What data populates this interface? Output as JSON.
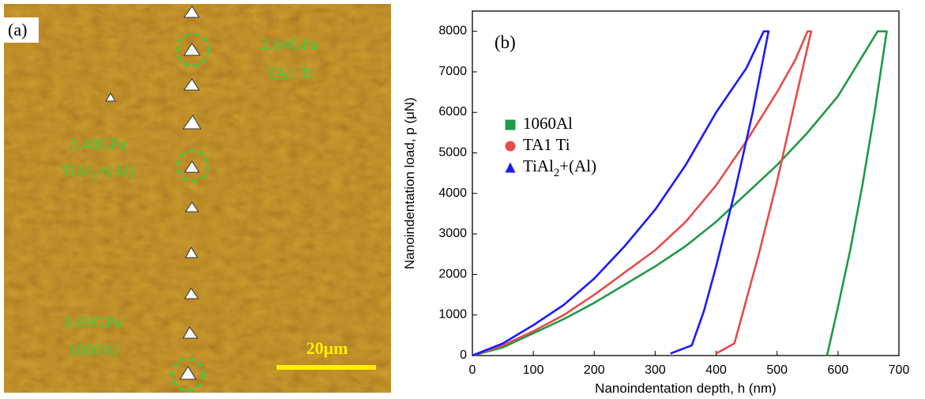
{
  "image_panel": {
    "label": "(a)",
    "annotations": [
      {
        "value": "2.64GPa",
        "phase": "TA1 Ti"
      },
      {
        "value": "3.48GPa",
        "phase": "TiAl2+(Al)"
      },
      {
        "value": "0.69GPa",
        "phase": "1060Al"
      }
    ],
    "scale_bar": "20μm"
  },
  "chart_data": {
    "type": "line",
    "panel_label": "(b)",
    "x_label": "Nanoindentation depth, h (nm)",
    "y_label": "Nanoindentation load, p (μN)",
    "xlim": [
      0,
      700
    ],
    "ylim": [
      0,
      8500
    ],
    "xticks": [
      0,
      100,
      200,
      300,
      400,
      500,
      600,
      700
    ],
    "yticks": [
      0,
      1000,
      2000,
      3000,
      4000,
      5000,
      6000,
      7000,
      8000
    ],
    "series": [
      {
        "name": "1060Al",
        "color": "#1f9a45",
        "marker": "square",
        "x": [
          0,
          50,
          100,
          150,
          200,
          250,
          300,
          350,
          400,
          450,
          500,
          550,
          600,
          665,
          680,
          660,
          640,
          620,
          600,
          582
        ],
        "values": [
          0,
          200,
          550,
          900,
          1300,
          1750,
          2200,
          2700,
          3300,
          4000,
          4700,
          5500,
          6400,
          8000,
          8000,
          6000,
          4200,
          2600,
          1200,
          0
        ]
      },
      {
        "name": "TA1 Ti",
        "color": "#e84a4a",
        "marker": "circle",
        "x": [
          0,
          50,
          100,
          150,
          200,
          250,
          300,
          350,
          400,
          450,
          500,
          530,
          550,
          556,
          530,
          500,
          470,
          450,
          430,
          400
        ],
        "values": [
          0,
          250,
          600,
          1000,
          1500,
          2050,
          2600,
          3300,
          4200,
          5300,
          6500,
          7300,
          8000,
          8000,
          6300,
          4300,
          2500,
          1400,
          300,
          50
        ]
      },
      {
        "name": "TiAl2+(Al)",
        "color": "#1a1aff",
        "marker": "triangle",
        "x": [
          0,
          50,
          100,
          150,
          200,
          250,
          300,
          350,
          400,
          450,
          478,
          486,
          460,
          430,
          400,
          380,
          360,
          325
        ],
        "values": [
          0,
          300,
          750,
          1250,
          1900,
          2700,
          3600,
          4700,
          6000,
          7100,
          8000,
          8000,
          6000,
          4000,
          2200,
          1100,
          250,
          50
        ]
      }
    ]
  }
}
